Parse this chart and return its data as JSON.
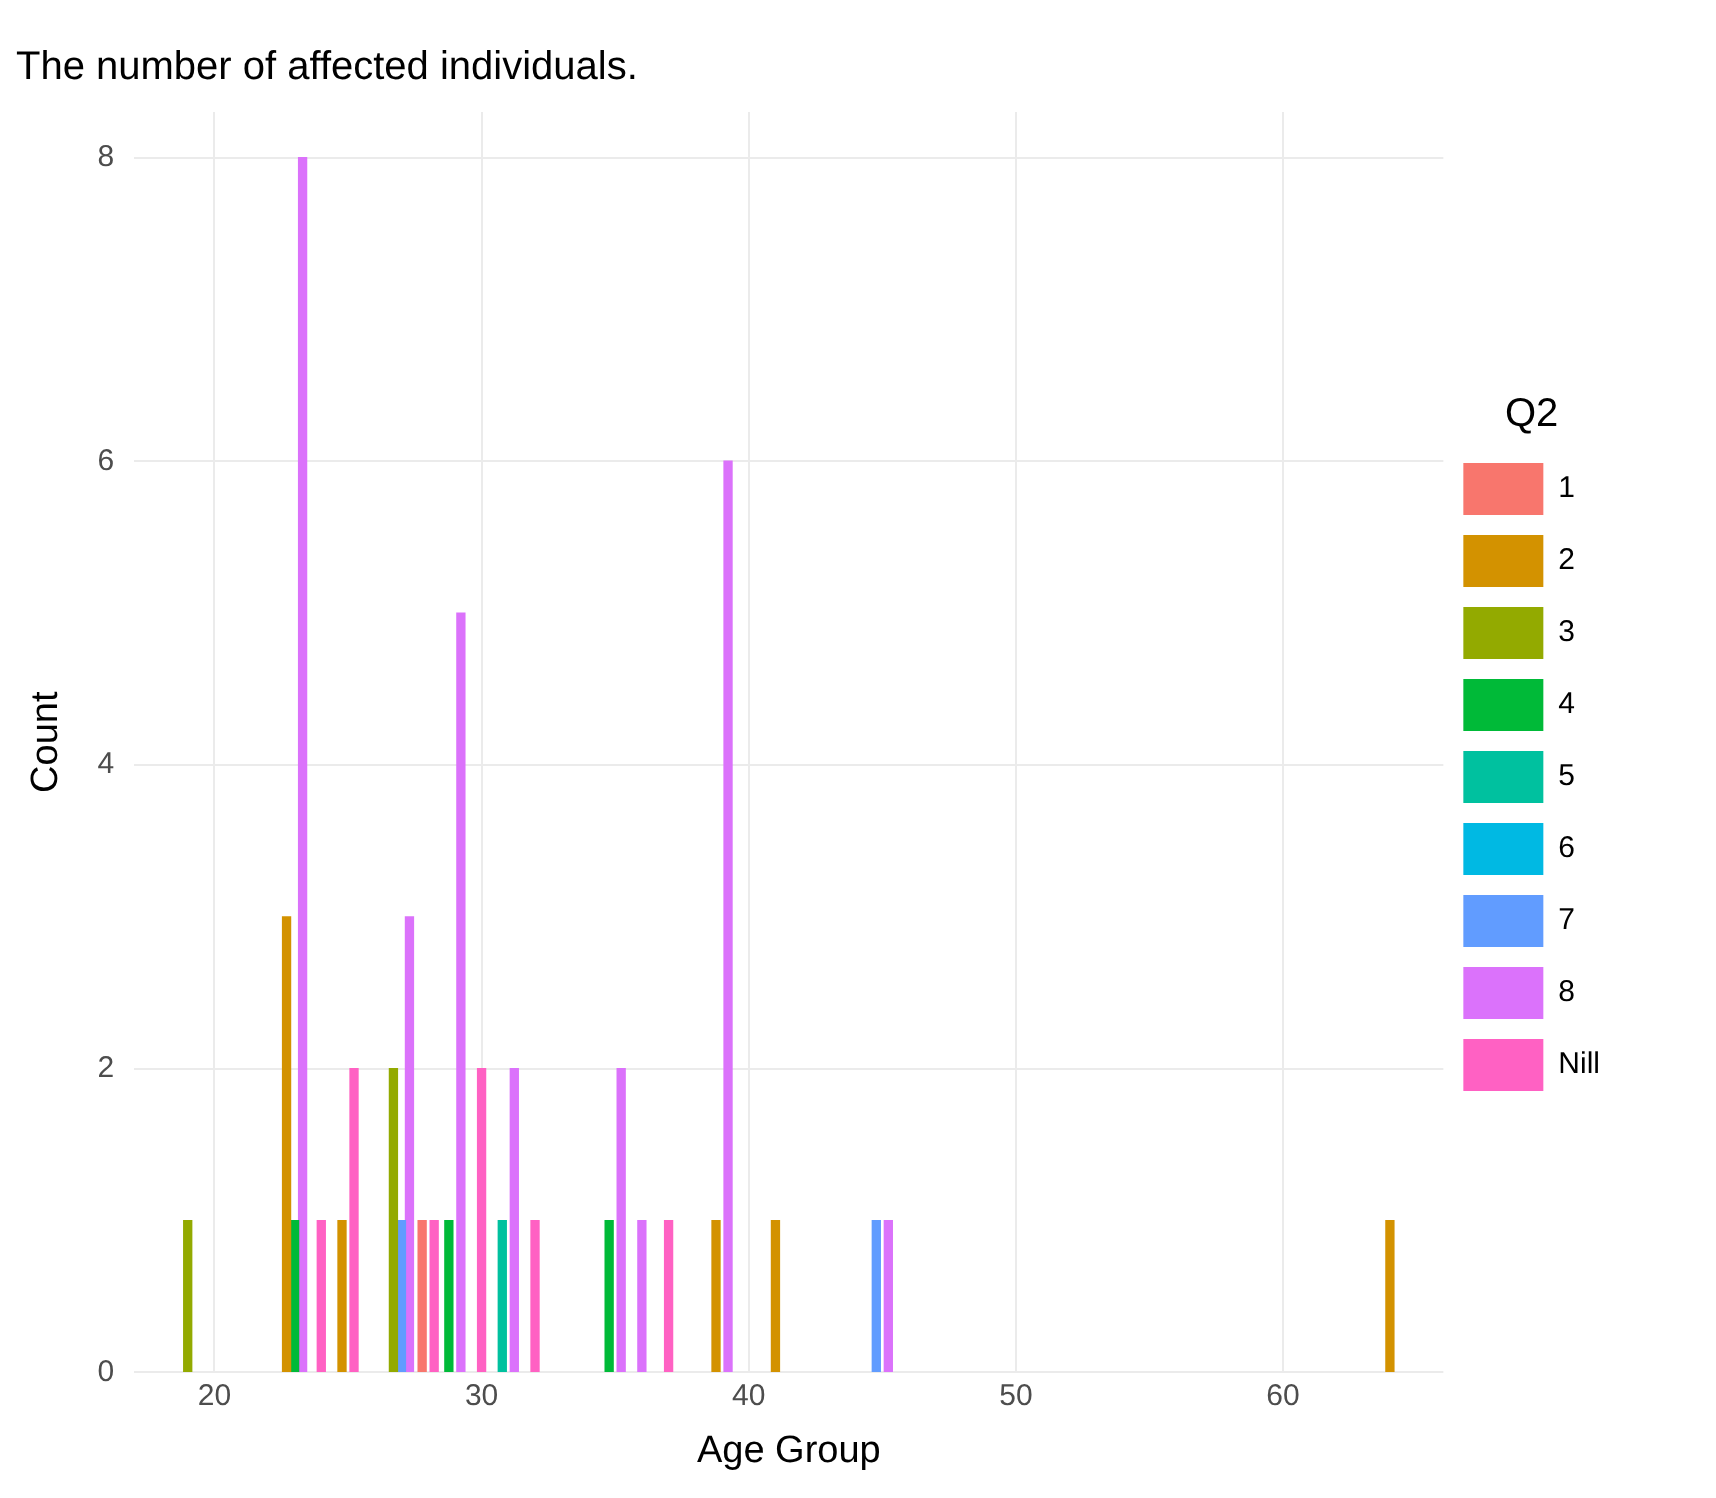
{
  "chart_data": {
    "type": "bar",
    "title": "The number of affected individuals.",
    "xlabel": "Age Group",
    "ylabel": "Count",
    "legend_title": "Q2",
    "series": [
      {
        "name": "1",
        "color": "#f8766d",
        "x": [
          28
        ],
        "values": [
          1
        ]
      },
      {
        "name": "2",
        "color": "#d39200",
        "x": [
          23,
          25,
          39,
          41,
          64
        ],
        "values": [
          3,
          1,
          1,
          1,
          1
        ]
      },
      {
        "name": "3",
        "color": "#93aa00",
        "x": [
          19,
          27
        ],
        "values": [
          1,
          2
        ]
      },
      {
        "name": "4",
        "color": "#00ba38",
        "x": [
          23,
          29,
          35
        ],
        "values": [
          1,
          1,
          1
        ]
      },
      {
        "name": "5",
        "color": "#00c19f",
        "x": [
          31
        ],
        "values": [
          1
        ]
      },
      {
        "name": "6",
        "color": "#00b9e3"
      },
      {
        "name": "7",
        "color": "#619cff",
        "x": [
          27,
          45
        ],
        "values": [
          1,
          1
        ]
      },
      {
        "name": "8",
        "color": "#db72fb",
        "x": [
          23,
          27,
          29,
          31,
          35,
          36,
          39,
          45
        ],
        "values": [
          8,
          3,
          5,
          2,
          2,
          1,
          6,
          1
        ]
      },
      {
        "name": "Nill",
        "color": "#ff61c3",
        "x": [
          24,
          25,
          28,
          30,
          32,
          37
        ],
        "values": [
          1,
          2,
          1,
          2,
          1,
          1
        ]
      }
    ],
    "xlim": [
      17,
      66
    ],
    "xticks": [
      20,
      30,
      40,
      50,
      60
    ],
    "ylim": [
      0,
      8.3
    ],
    "yticks": [
      0,
      2,
      4,
      6,
      8
    ],
    "grid": true,
    "legend": "right"
  }
}
